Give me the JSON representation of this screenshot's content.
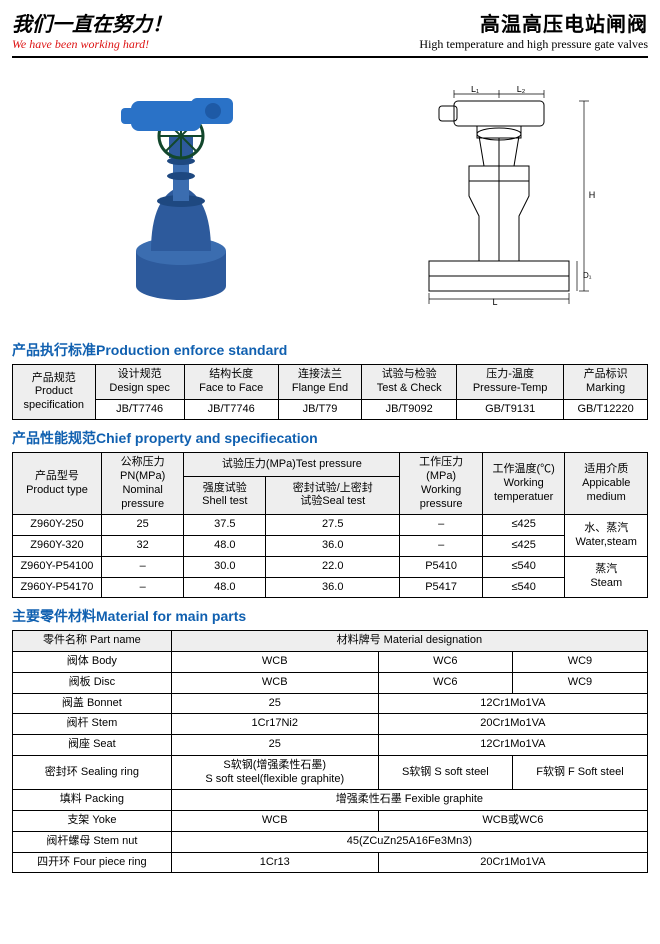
{
  "header": {
    "slogan_cn": "我们一直在努力！",
    "slogan_en": "We have been working hard!",
    "title_cn": "高温高压电站闸阀",
    "title_en": "High temperature and high pressure gate valves"
  },
  "figure": {
    "photo_colors": {
      "body": "#2d5a9c",
      "motor": "#2a72c7",
      "wheel": "#12472c"
    },
    "drawing_labels": {
      "L": "L",
      "L1": "L₁",
      "L2": "L₂",
      "H": "H",
      "D1": "D₁"
    }
  },
  "section1": {
    "title": "产品执行标准Production enforce standard",
    "headers": [
      "产品规范\nProduct\nspecification",
      "设计规范\nDesign spec",
      "结构长度\nFace to Face",
      "连接法兰\nFlange End",
      "试验与检验\nTest & Check",
      "压力-温度\nPressure-Temp",
      "产品标识\nMarking"
    ],
    "row": [
      "JB/T7746",
      "JB/T7746",
      "JB/T79",
      "JB/T9092",
      "GB/T9131",
      "GB/T12220"
    ]
  },
  "section2": {
    "title": "产品性能规范Chief property and specifiecation",
    "headers": {
      "type": "产品型号\nProduct type",
      "pn": "公称压力\nPN(MPa)\nNominal pressure",
      "tp": "试验压力(MPa)Test pressure",
      "tp_shell": "强度试验\nShell test",
      "tp_seal": "密封试验/上密封\n试验Seal test",
      "wp": "工作压力(MPa)\nWorking\npressure",
      "wt": "工作温度(℃)\nWorking\ntemperatuer",
      "med": "适用介质\nAppicable\nmedium"
    },
    "rows": [
      {
        "type": "Z960Y-250",
        "pn": "25",
        "shell": "37.5",
        "seal": "27.5",
        "wp": "–",
        "wt": "≤425"
      },
      {
        "type": "Z960Y-320",
        "pn": "32",
        "shell": "48.0",
        "seal": "36.0",
        "wp": "–",
        "wt": "≤425"
      },
      {
        "type": "Z960Y-P54100",
        "pn": "–",
        "shell": "30.0",
        "seal": "22.0",
        "wp": "P5410",
        "wt": "≤540"
      },
      {
        "type": "Z960Y-P54170",
        "pn": "–",
        "shell": "48.0",
        "seal": "36.0",
        "wp": "P5417",
        "wt": "≤540"
      }
    ],
    "medium1": "水、蒸汽\nWater,steam",
    "medium2": "蒸汽\nSteam"
  },
  "section3": {
    "title": "主要零件材料Material for main parts",
    "header_part": "零件名称 Part name",
    "header_mat": "材料牌号 Material designation",
    "rows": [
      {
        "part": "阀体 Body",
        "c": [
          "WCB",
          "WC6",
          "WC9"
        ]
      },
      {
        "part": "阀板 Disc",
        "c": [
          "WCB",
          "WC6",
          "WC9"
        ]
      },
      {
        "part": "阀盖 Bonnet",
        "c": [
          "25",
          "12Cr1Mo1VA"
        ],
        "spans": [
          1,
          2
        ]
      },
      {
        "part": "阀杆 Stem",
        "c": [
          "1Cr17Ni2",
          "20Cr1Mo1VA"
        ],
        "spans": [
          1,
          2
        ]
      },
      {
        "part": "阀座 Seat",
        "c": [
          "25",
          "12Cr1Mo1VA"
        ],
        "spans": [
          1,
          2
        ]
      },
      {
        "part": "密封环 Sealing ring",
        "c": [
          "S软钢(增强柔性石墨)\nS soft steel(flexible graphite)",
          "S软钢 S soft steel",
          "F软钢 F Soft steel"
        ]
      },
      {
        "part": "填料 Packing",
        "c": [
          "增强柔性石墨  Fexible graphite"
        ],
        "spans": [
          3
        ]
      },
      {
        "part": "支架 Yoke",
        "c": [
          "WCB",
          "WCB或WC6"
        ],
        "spans": [
          1,
          2
        ]
      },
      {
        "part": "阀杆螺母 Stem nut",
        "c": [
          "45(ZCuZn25A16Fe3Mn3)"
        ],
        "spans": [
          3
        ]
      },
      {
        "part": "四开环 Four piece ring",
        "c": [
          "1Cr13",
          "20Cr1Mo1VA"
        ],
        "spans": [
          1,
          2
        ]
      }
    ]
  }
}
